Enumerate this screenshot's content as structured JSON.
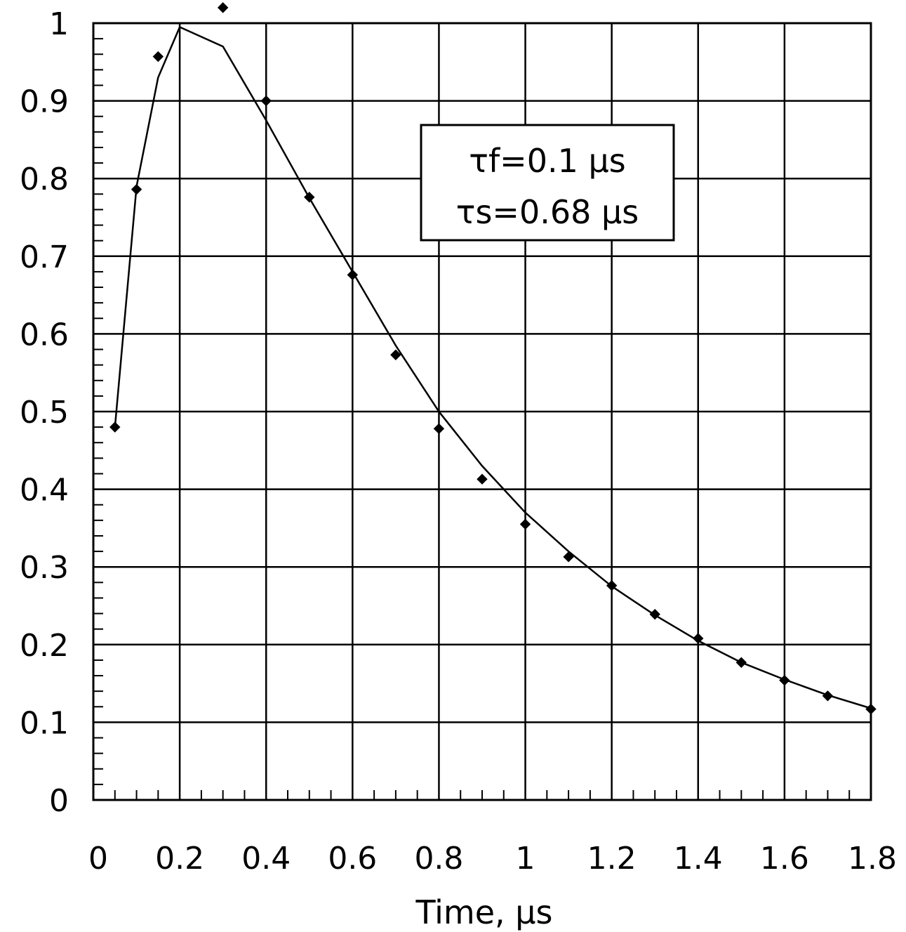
{
  "chart_data": {
    "type": "scatter",
    "xlabel": "Time, µs",
    "ylabel": "",
    "xlim": [
      0,
      1.8
    ],
    "ylim": [
      0,
      1
    ],
    "grid": true,
    "x_ticks": [
      "0",
      "0.2",
      "0.4",
      "0.6",
      "0.8",
      "1",
      "1.2",
      "1.4",
      "1.6",
      "1.8"
    ],
    "y_ticks": [
      "0",
      "0.1",
      "0.2",
      "0.3",
      "0.4",
      "0.5",
      "0.6",
      "0.7",
      "0.8",
      "0.9",
      "1"
    ],
    "annotation": {
      "lines": [
        "τf=0.1 µs",
        "τs=0.68 µs"
      ],
      "placement": "upper-center"
    },
    "series": [
      {
        "kind": "points",
        "marker": "diamond",
        "x": [
          0.05,
          0.1,
          0.15,
          0.3,
          0.4,
          0.5,
          0.6,
          0.7,
          0.8,
          0.9,
          1.0,
          1.1,
          1.2,
          1.3,
          1.4,
          1.5,
          1.6,
          1.7,
          1.8
        ],
        "y": [
          0.48,
          0.786,
          0.957,
          1.02,
          0.9,
          0.776,
          0.676,
          0.573,
          0.478,
          0.413,
          0.355,
          0.313,
          0.276,
          0.239,
          0.208,
          0.177,
          0.154,
          0.134,
          0.117
        ]
      },
      {
        "kind": "line",
        "x": [
          0.05,
          0.1,
          0.15,
          0.2,
          0.3,
          0.4,
          0.5,
          0.6,
          0.7,
          0.8,
          0.9,
          1.0,
          1.1,
          1.2,
          1.3,
          1.4,
          1.5,
          1.6,
          1.7,
          1.8
        ],
        "y": [
          0.48,
          0.79,
          0.93,
          0.995,
          0.97,
          0.875,
          0.775,
          0.68,
          0.585,
          0.5,
          0.43,
          0.37,
          0.32,
          0.275,
          0.238,
          0.205,
          0.177,
          0.155,
          0.135,
          0.118
        ]
      }
    ],
    "colors": {
      "line": "#000000",
      "points": "#000000",
      "grid": "#000000",
      "background": "#ffffff"
    }
  }
}
